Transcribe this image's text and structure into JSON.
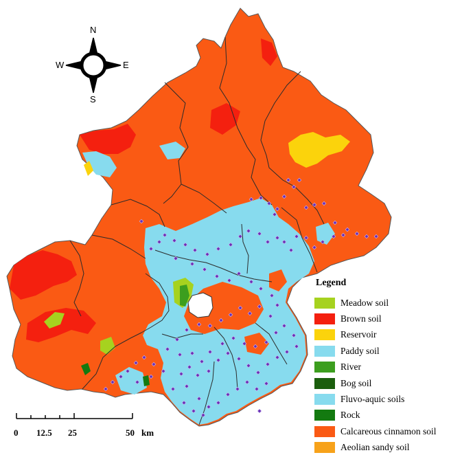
{
  "compass": {
    "north": "N",
    "south": "S",
    "east": "E",
    "west": "W"
  },
  "legend": {
    "title": "Legend",
    "items": [
      {
        "label": "Meadow soil",
        "color": "#a6d21f"
      },
      {
        "label": "Brown soil",
        "color": "#f4200f"
      },
      {
        "label": "Reservoir",
        "color": "#fbd30c"
      },
      {
        "label": "Paddy soil",
        "color": "#87dbee"
      },
      {
        "label": "River",
        "color": "#3c9e1e"
      },
      {
        "label": "Bog soil",
        "color": "#1b5e0d"
      },
      {
        "label": "Fluvo-aquic soils",
        "color": "#87dbee"
      },
      {
        "label": "Rock",
        "color": "#137a10"
      },
      {
        "label": "Calcareous cinnamon  soil",
        "color": "#fa5a14"
      },
      {
        "label": "Aeolian sandy soil",
        "color": "#f7a21a"
      }
    ]
  },
  "scale_bar": {
    "ticks": [
      "0",
      "12.5",
      "25",
      "50"
    ],
    "unit": "km"
  },
  "colors": {
    "calcareous": "#fa5a14",
    "brown": "#f4200f",
    "fluvo": "#87dbee",
    "reservoir": "#fbd30c",
    "meadow": "#a6d21f",
    "river": "#3c9e1e",
    "rock": "#137a10",
    "sample_point": "#6a2fb5",
    "boundary": "#2b2b2b"
  }
}
